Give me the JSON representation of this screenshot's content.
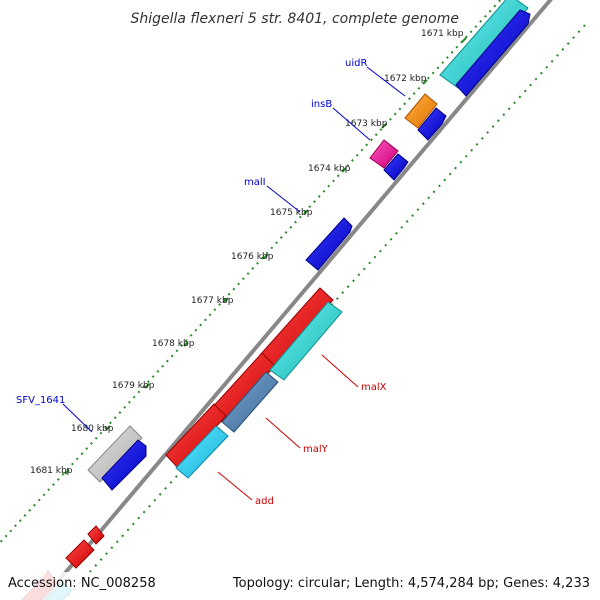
{
  "title": "Shigella flexneri 5 str. 8401, complete genome",
  "footer": {
    "accession": "Accession: NC_008258",
    "topology": "Topology: circular; Length: 4,574,284 bp; Genes: 4,233"
  },
  "ticks": [
    "1671 kbp",
    "1672 kbp",
    "1673 kbp",
    "1674 kbp",
    "1675 kbp",
    "1676 kbp",
    "1677 kbp",
    "1678 kbp",
    "1679 kbp",
    "1680 kbp",
    "1681 kbp"
  ],
  "gene_labels": {
    "uidR": "uidR",
    "insB": "insB",
    "malI": "malI",
    "SFV_1641": "SFV_1641",
    "malX": "malX",
    "malY": "malY",
    "add": "add"
  },
  "colors": {
    "backbone": "#888888",
    "tick_dots": "#2a8a2a",
    "cds_forward": "#0000dd",
    "cds_reverse": "#ee0000",
    "teal": "#20c8c8",
    "orange": "#ff8800",
    "magenta": "#ee2299",
    "steelblue": "#4a7aaa",
    "grey": "#bbbbbb",
    "label_blue": "#0000cc",
    "label_red": "#cc0000"
  }
}
